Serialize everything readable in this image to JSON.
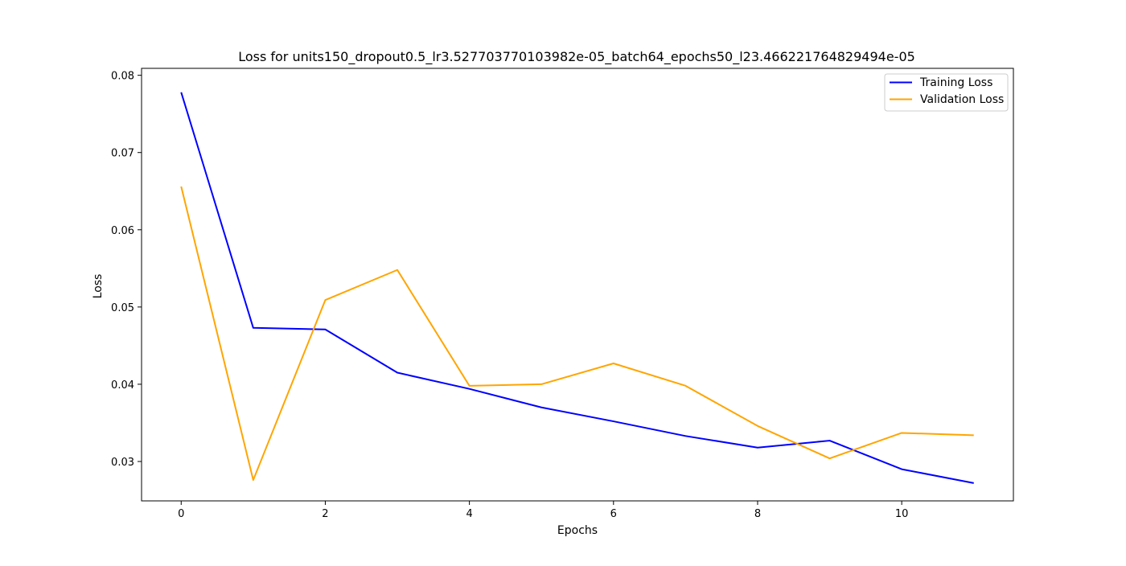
{
  "chart_data": {
    "type": "line",
    "title": "Loss for units150_dropout0.5_lr3.527703770103982e-05_batch64_epochs50_l23.466221764829494e-05",
    "xlabel": "Epochs",
    "ylabel": "Loss",
    "xlim": [
      -0.55,
      11.55
    ],
    "ylim": [
      0.0249,
      0.0809
    ],
    "x": [
      0,
      1,
      2,
      3,
      4,
      5,
      6,
      7,
      8,
      9,
      10,
      11
    ],
    "x_ticks": [
      0,
      2,
      4,
      6,
      8,
      10
    ],
    "y_ticks": [
      0.03,
      0.04,
      0.05,
      0.06,
      0.07,
      0.08
    ],
    "x_tick_labels": [
      "0",
      "2",
      "4",
      "6",
      "8",
      "10"
    ],
    "y_tick_labels": [
      "0.03",
      "0.04",
      "0.05",
      "0.06",
      "0.07",
      "0.08"
    ],
    "grid": false,
    "legend_position": "top-right",
    "series": [
      {
        "name": "Training Loss",
        "color": "#0000ff",
        "values": [
          0.0778,
          0.0473,
          0.0471,
          0.0415,
          0.0394,
          0.037,
          0.0352,
          0.0333,
          0.0318,
          0.0327,
          0.029,
          0.0272
        ]
      },
      {
        "name": "Validation Loss",
        "color": "#ffa500",
        "values": [
          0.0656,
          0.0276,
          0.0509,
          0.0548,
          0.0398,
          0.04,
          0.0427,
          0.0398,
          0.0346,
          0.0304,
          0.0337,
          0.0334
        ]
      }
    ]
  }
}
